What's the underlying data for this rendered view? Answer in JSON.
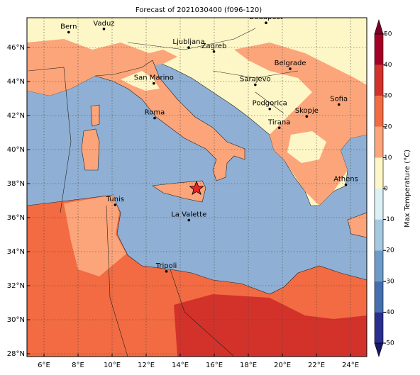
{
  "title": "Forecast of 2021030400 (f096-120)",
  "map": {
    "lon_ticks": [
      "6°E",
      "8°E",
      "10°E",
      "12°E",
      "14°E",
      "16°E",
      "18°E",
      "20°E",
      "22°E",
      "24°E"
    ],
    "lat_ticks": [
      "28°N",
      "30°N",
      "32°N",
      "34°N",
      "36°N",
      "38°N",
      "40°N",
      "42°N",
      "44°N",
      "46°N"
    ]
  },
  "cities": [
    "Bern",
    "Vaduz",
    "Budapest",
    "Ljubljana",
    "Zagreb",
    "Belgrade",
    "Sarajevo",
    "San Marino",
    "Roma",
    "Podgorica",
    "Skopje",
    "Sofia",
    "Tirana",
    "Athens",
    "Tunis",
    "La Valette",
    "Tripoli"
  ],
  "colorbar": {
    "label": "Max Temperature (°C)",
    "ticks": [
      -50,
      -40,
      -30,
      -20,
      -10,
      0,
      10,
      20,
      30,
      40,
      50
    ],
    "colors": [
      "#2a2f8e",
      "#4470b0",
      "#6d9cc9",
      "#a5c9e1",
      "#dcf0f5",
      "#fdf6c6",
      "#fca57a",
      "#f26b42",
      "#d3322b",
      "#a50026"
    ],
    "under_color": "#1a1766",
    "over_color": "#7f0026"
  }
}
